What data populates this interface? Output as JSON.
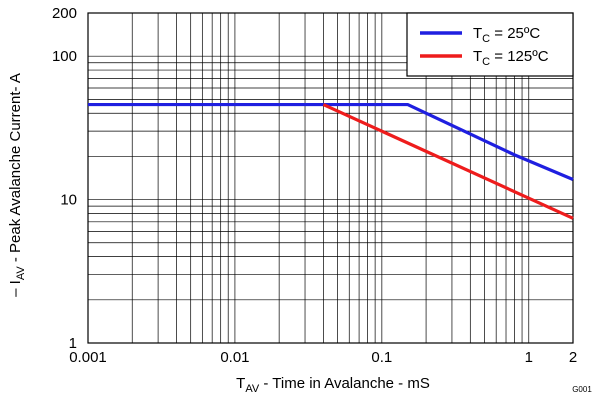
{
  "figure_id": "G001",
  "chart_data": {
    "type": "line",
    "xscale": "log",
    "yscale": "log",
    "xlim": [
      0.001,
      2
    ],
    "ylim": [
      1,
      200
    ],
    "xticks": [
      {
        "value": 0.001,
        "label": "0.001"
      },
      {
        "value": 0.01,
        "label": "0.01"
      },
      {
        "value": 0.1,
        "label": "0.1"
      },
      {
        "value": 1,
        "label": "1"
      },
      {
        "value": 2,
        "label": "2"
      }
    ],
    "yticks": [
      {
        "value": 1,
        "label": "1"
      },
      {
        "value": 10,
        "label": "10"
      },
      {
        "value": 100,
        "label": "100"
      },
      {
        "value": 200,
        "label": "200"
      }
    ],
    "xlabel": {
      "main": "T",
      "sub": "AV",
      "rest": " - Time in Avalanche - mS"
    },
    "ylabel": {
      "pre": "– I",
      "sub": "AV",
      "rest": " - Peak Avalanche Current- A"
    },
    "grid": true,
    "legend_position": "top-right",
    "series": [
      {
        "name": "TC = 25ºC",
        "legend": {
          "main": "T",
          "sub": "C",
          "rest": " = 25ºC"
        },
        "color": "#1f1fe0",
        "points": [
          [
            0.001,
            46
          ],
          [
            0.15,
            46
          ],
          [
            0.8,
            20.5
          ],
          [
            2,
            13.8
          ]
        ]
      },
      {
        "name": "TC = 125ºC",
        "legend": {
          "main": "T",
          "sub": "C",
          "rest": " = 125ºC"
        },
        "color": "#ee1c1c",
        "points": [
          [
            0.04,
            46
          ],
          [
            2,
            7.4
          ]
        ]
      }
    ]
  }
}
